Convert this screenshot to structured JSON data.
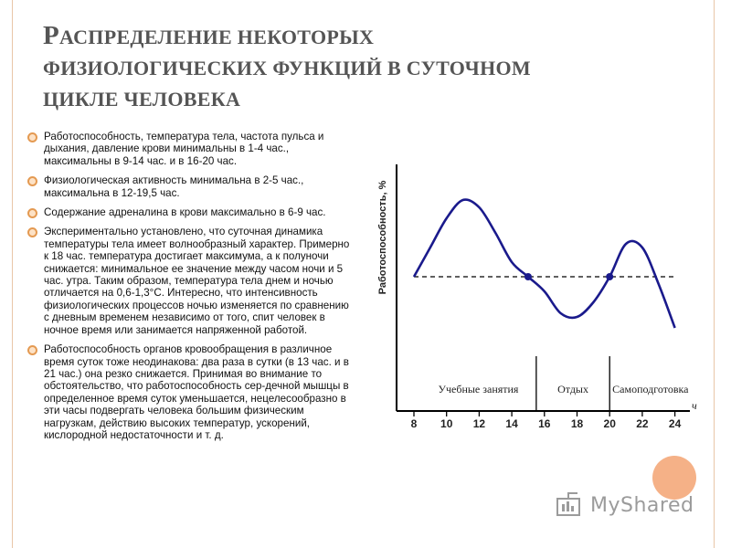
{
  "title": {
    "cap": "Р",
    "line1_rest": "АСПРЕДЕЛЕНИЕ НЕКОТОРЫХ",
    "line2": "ФИЗИОЛОГИЧЕСКИХ ФУНКЦИЙ В СУТОЧНОМ",
    "line3": "ЦИКЛЕ ЧЕЛОВЕКА"
  },
  "bullets": [
    "Работоспособность, температура тела, частота пульса и дыхания, давление крови минимальны в 1-4 час., максимальны в 9-14 час. и в 16-20 час.",
    "Физиологическая активность минимальна в 2-5 час., максимальна в 12-19,5 час.",
    "Содержание адреналина в крови максимально в 6-9 час.",
    "Экспериментально установлено, что суточная динамика температуры тела имеет волнообразный характер. Примерно к 18 час. температура достигает максимума, а к полуночи снижается: минимальное ее значение между часом ночи и 5 час. утра. Таким образом, температура тела днем и ночью отличается на 0,6-1,3°С. Интересно, что интенсивность физиологических процессов ночью изменяется по сравнению с дневным временем независимо от того, спит человек в ночное время или занимается напряженной работой.",
    "Работоспособность органов кровообращения в различное время суток тоже неодинакова: два раза в сутки (в 13 час. и в 21 час.) она резко снижается. Принимая во внимание то обстоятельство, что работоспособность сер-дечной мышцы в определенное время суток уменьшается, нецелесообразно в эти часы подвергать человека большим физическим нагрузкам, действию высоких температур, ускорений, кислородной недостаточности и т. д."
  ],
  "chart_data": {
    "type": "line",
    "ylabel": "Работоспособность, %",
    "xlabel": "ч",
    "x_ticks": [
      8,
      10,
      12,
      14,
      16,
      18,
      20,
      22,
      24
    ],
    "xlim": [
      7.5,
      25
    ],
    "regions": [
      {
        "label": "Учебные занятия",
        "from": 7.5,
        "to": 15.5
      },
      {
        "label": "Отдых",
        "from": 15.5,
        "to": 20
      },
      {
        "label": "Самоподготовка",
        "from": 20,
        "to": 25
      }
    ],
    "reference_line": "dashed",
    "series": [
      {
        "x": [
          8,
          9,
          10,
          11,
          12,
          13,
          14,
          15,
          16,
          17,
          18,
          19,
          20,
          21,
          22,
          23,
          24
        ],
        "y": [
          0.0,
          0.4,
          0.8,
          1.05,
          0.95,
          0.6,
          0.2,
          0.0,
          -0.2,
          -0.5,
          -0.55,
          -0.35,
          0.0,
          0.45,
          0.4,
          -0.1,
          -0.7
        ]
      }
    ]
  },
  "watermark": {
    "text": "MyShared"
  }
}
